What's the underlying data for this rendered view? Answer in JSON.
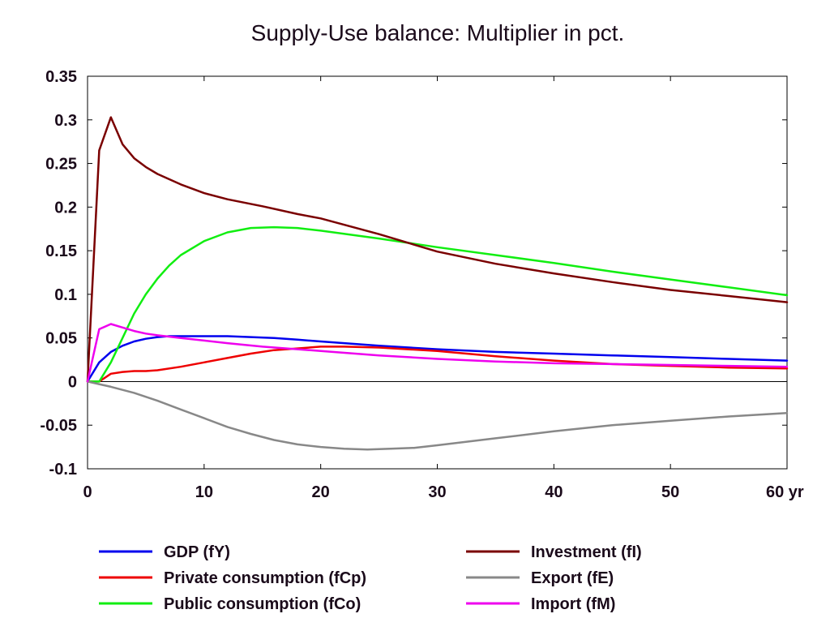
{
  "chart_data": {
    "type": "line",
    "title": "Supply-Use balance: Multiplier in pct.",
    "xlabel": "",
    "ylabel": "",
    "xlim": [
      0,
      60
    ],
    "ylim": [
      -0.1,
      0.35
    ],
    "x_ticks": [
      {
        "value": 0,
        "label": "0"
      },
      {
        "value": 10,
        "label": "10"
      },
      {
        "value": 20,
        "label": "20"
      },
      {
        "value": 30,
        "label": "30"
      },
      {
        "value": 40,
        "label": "40"
      },
      {
        "value": 50,
        "label": "50"
      },
      {
        "value": 60,
        "label": "60 yr"
      }
    ],
    "y_ticks": [
      {
        "value": 0.35,
        "label": "0.35"
      },
      {
        "value": 0.3,
        "label": "0.3"
      },
      {
        "value": 0.25,
        "label": "0.25"
      },
      {
        "value": 0.2,
        "label": "0.2"
      },
      {
        "value": 0.15,
        "label": "0.15"
      },
      {
        "value": 0.1,
        "label": "0.1"
      },
      {
        "value": 0.05,
        "label": "0.05"
      },
      {
        "value": 0,
        "label": "0"
      },
      {
        "value": -0.05,
        "label": "-0.05"
      },
      {
        "value": -0.1,
        "label": "-0.1"
      }
    ],
    "grid": false,
    "zero_line": true,
    "legend_position": "bottom",
    "series": [
      {
        "name": "GDP (fY)",
        "color": "#0000ee",
        "points": [
          [
            0,
            0
          ],
          [
            1,
            0.022
          ],
          [
            2,
            0.034
          ],
          [
            3,
            0.041
          ],
          [
            4,
            0.046
          ],
          [
            5,
            0.049
          ],
          [
            6,
            0.051
          ],
          [
            7,
            0.052
          ],
          [
            8,
            0.052
          ],
          [
            10,
            0.052
          ],
          [
            12,
            0.052
          ],
          [
            14,
            0.051
          ],
          [
            16,
            0.05
          ],
          [
            18,
            0.048
          ],
          [
            20,
            0.046
          ],
          [
            25,
            0.041
          ],
          [
            30,
            0.037
          ],
          [
            35,
            0.034
          ],
          [
            40,
            0.032
          ],
          [
            45,
            0.03
          ],
          [
            50,
            0.028
          ],
          [
            55,
            0.026
          ],
          [
            60,
            0.024
          ]
        ]
      },
      {
        "name": "Private consumption (fCp)",
        "color": "#ee0000",
        "points": [
          [
            0,
            0
          ],
          [
            1,
            0
          ],
          [
            2,
            0.009
          ],
          [
            3,
            0.011
          ],
          [
            4,
            0.012
          ],
          [
            5,
            0.012
          ],
          [
            6,
            0.013
          ],
          [
            8,
            0.017
          ],
          [
            10,
            0.022
          ],
          [
            12,
            0.027
          ],
          [
            14,
            0.032
          ],
          [
            16,
            0.036
          ],
          [
            18,
            0.038
          ],
          [
            20,
            0.04
          ],
          [
            22,
            0.04
          ],
          [
            25,
            0.039
          ],
          [
            30,
            0.035
          ],
          [
            35,
            0.029
          ],
          [
            40,
            0.024
          ],
          [
            45,
            0.02
          ],
          [
            50,
            0.018
          ],
          [
            55,
            0.016
          ],
          [
            60,
            0.015
          ]
        ]
      },
      {
        "name": "Public consumption (fCo)",
        "color": "#11ee11",
        "points": [
          [
            0,
            0
          ],
          [
            1,
            0
          ],
          [
            2,
            0.022
          ],
          [
            3,
            0.05
          ],
          [
            4,
            0.078
          ],
          [
            5,
            0.1
          ],
          [
            6,
            0.118
          ],
          [
            7,
            0.133
          ],
          [
            8,
            0.145
          ],
          [
            10,
            0.161
          ],
          [
            12,
            0.171
          ],
          [
            14,
            0.176
          ],
          [
            16,
            0.177
          ],
          [
            18,
            0.176
          ],
          [
            20,
            0.173
          ],
          [
            25,
            0.164
          ],
          [
            30,
            0.154
          ],
          [
            35,
            0.145
          ],
          [
            40,
            0.136
          ],
          [
            45,
            0.126
          ],
          [
            50,
            0.117
          ],
          [
            55,
            0.108
          ],
          [
            60,
            0.099
          ]
        ]
      },
      {
        "name": "Investment (fI)",
        "color": "#7a0000",
        "points": [
          [
            0,
            0
          ],
          [
            1,
            0.265
          ],
          [
            2,
            0.303
          ],
          [
            3,
            0.272
          ],
          [
            4,
            0.256
          ],
          [
            5,
            0.246
          ],
          [
            6,
            0.238
          ],
          [
            8,
            0.226
          ],
          [
            10,
            0.216
          ],
          [
            12,
            0.209
          ],
          [
            15,
            0.201
          ],
          [
            18,
            0.192
          ],
          [
            20,
            0.187
          ],
          [
            25,
            0.169
          ],
          [
            30,
            0.149
          ],
          [
            35,
            0.135
          ],
          [
            40,
            0.124
          ],
          [
            45,
            0.114
          ],
          [
            50,
            0.105
          ],
          [
            55,
            0.098
          ],
          [
            60,
            0.091
          ]
        ]
      },
      {
        "name": "Export (fE)",
        "color": "#888888",
        "points": [
          [
            0,
            0
          ],
          [
            2,
            -0.006
          ],
          [
            4,
            -0.013
          ],
          [
            6,
            -0.022
          ],
          [
            8,
            -0.032
          ],
          [
            10,
            -0.042
          ],
          [
            12,
            -0.052
          ],
          [
            14,
            -0.06
          ],
          [
            16,
            -0.067
          ],
          [
            18,
            -0.072
          ],
          [
            20,
            -0.075
          ],
          [
            22,
            -0.077
          ],
          [
            24,
            -0.078
          ],
          [
            26,
            -0.077
          ],
          [
            28,
            -0.076
          ],
          [
            30,
            -0.073
          ],
          [
            35,
            -0.065
          ],
          [
            40,
            -0.057
          ],
          [
            45,
            -0.05
          ],
          [
            50,
            -0.045
          ],
          [
            55,
            -0.04
          ],
          [
            60,
            -0.036
          ]
        ]
      },
      {
        "name": "Import (fM)",
        "color": "#ee00ee",
        "points": [
          [
            0,
            0
          ],
          [
            1,
            0.06
          ],
          [
            2,
            0.066
          ],
          [
            3,
            0.062
          ],
          [
            4,
            0.058
          ],
          [
            5,
            0.055
          ],
          [
            6,
            0.053
          ],
          [
            8,
            0.05
          ],
          [
            10,
            0.047
          ],
          [
            12,
            0.044
          ],
          [
            15,
            0.04
          ],
          [
            18,
            0.037
          ],
          [
            20,
            0.035
          ],
          [
            25,
            0.03
          ],
          [
            30,
            0.026
          ],
          [
            35,
            0.023
          ],
          [
            40,
            0.021
          ],
          [
            45,
            0.02
          ],
          [
            50,
            0.019
          ],
          [
            55,
            0.018
          ],
          [
            60,
            0.017
          ]
        ]
      }
    ],
    "legend_columns": [
      [
        "GDP (fY)",
        "Private consumption (fCp)",
        "Public consumption (fCo)"
      ],
      [
        "Investment (fI)",
        "Export (fE)",
        "Import (fM)"
      ]
    ]
  }
}
